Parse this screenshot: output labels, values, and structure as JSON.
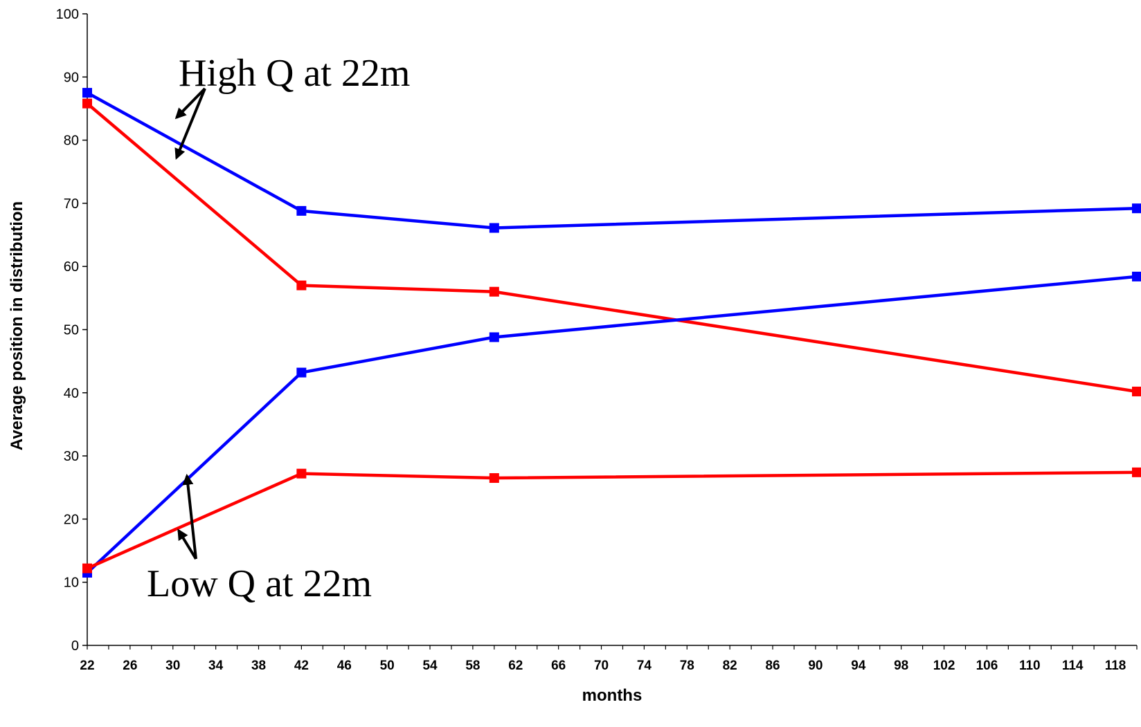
{
  "chart_data": {
    "type": "line",
    "title": "",
    "xlabel": "months",
    "ylabel": "Average position in distribution",
    "xlim": [
      22,
      120
    ],
    "ylim": [
      0,
      100
    ],
    "yticks": [
      0,
      10,
      20,
      30,
      40,
      50,
      60,
      70,
      80,
      90,
      100
    ],
    "xticks": [
      22,
      26,
      30,
      34,
      38,
      42,
      46,
      50,
      54,
      58,
      62,
      66,
      70,
      74,
      78,
      82,
      86,
      90,
      94,
      98,
      102,
      106,
      110,
      114,
      118
    ],
    "grid": false,
    "legend": "none",
    "series": [
      {
        "color": "#0000ff",
        "x": [
          22,
          42,
          60,
          120
        ],
        "values": [
          87.5,
          68.8,
          66.1,
          69.2
        ]
      },
      {
        "color": "#ff0000",
        "x": [
          22,
          42,
          60,
          120
        ],
        "values": [
          85.8,
          57.0,
          56.0,
          40.2
        ]
      },
      {
        "color": "#0000ff",
        "x": [
          22,
          42,
          60,
          120
        ],
        "values": [
          11.5,
          43.2,
          48.8,
          58.4
        ]
      },
      {
        "color": "#ff0000",
        "x": [
          22,
          42,
          60,
          120
        ],
        "values": [
          12.2,
          27.2,
          26.5,
          27.4
        ]
      }
    ],
    "annotations": [
      {
        "text": "High Q at 22m"
      },
      {
        "text": "Low Q at 22m"
      }
    ]
  }
}
